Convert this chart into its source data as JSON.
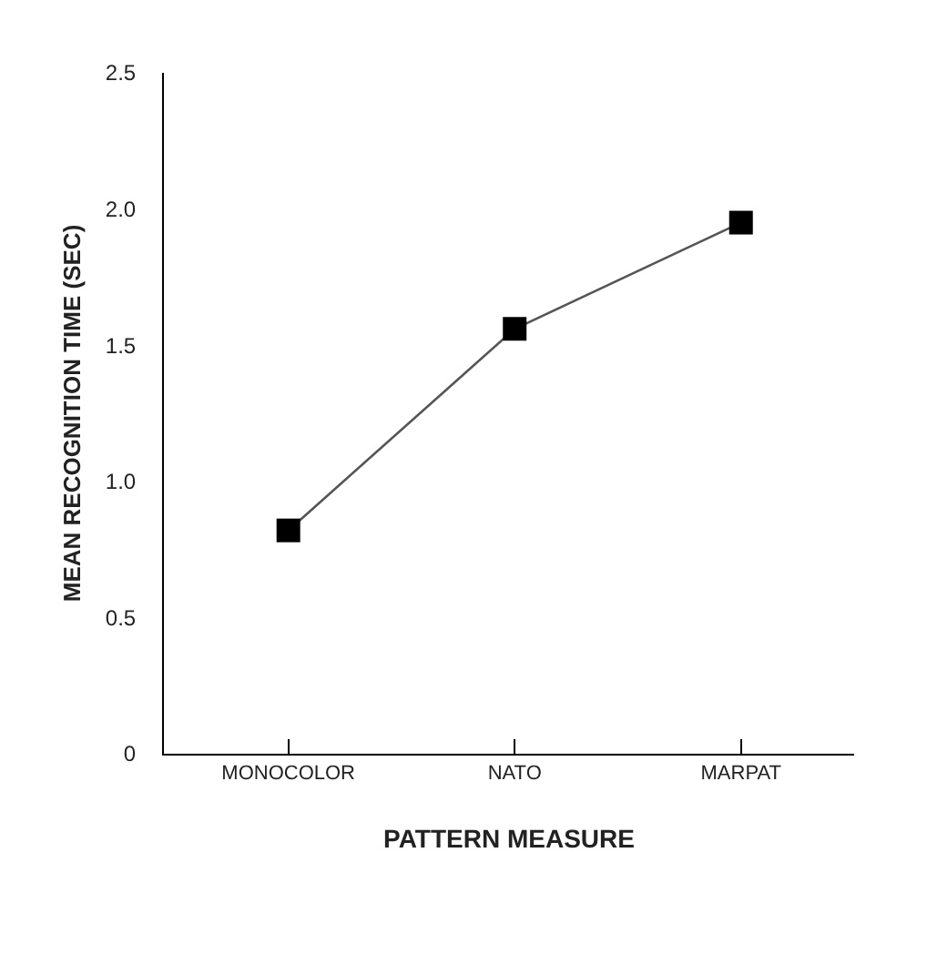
{
  "chart_data": {
    "type": "line",
    "xlabel": "PATTERN MEASURE",
    "ylabel": "MEAN RECOGNITION TIME (SEC)",
    "categories": [
      "MONOCOLOR",
      "NATO",
      "MARPAT"
    ],
    "series": [
      {
        "color": "#000000",
        "values": [
          0.82,
          1.56,
          1.95
        ]
      }
    ],
    "ylim": [
      0,
      2.5
    ],
    "yticks": [
      {
        "value": 0,
        "label": "0"
      },
      {
        "value": 0.5,
        "label": "0.5"
      },
      {
        "value": 1,
        "label": "1.0"
      },
      {
        "value": 1.5,
        "label": "1.5"
      },
      {
        "value": 2,
        "label": "2.0"
      },
      {
        "value": 2.5,
        "label": "2.5"
      }
    ],
    "marker": "square",
    "line_style": "solid",
    "legend": false
  }
}
